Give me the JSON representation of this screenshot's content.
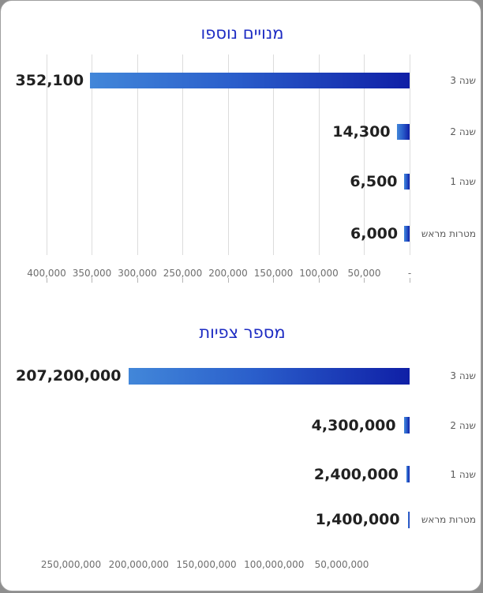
{
  "page": {
    "background_color": "#8e8e8e",
    "card_color": "#ffffff"
  },
  "colors": {
    "title_text": "#1e2cc3",
    "value_label_text": "#212121",
    "category_label_text": "#5a5a5a",
    "axis_label_text": "#6e6e6e",
    "gridline": "#dcdcdc",
    "tick_mark": "#b5b5b5",
    "bar_gradient_left": "#4287d9",
    "bar_gradient_right": "#0f1fa6"
  },
  "chart_data": [
    {
      "type": "bar",
      "orientation": "horizontal_rtl",
      "title": "מנויים נוספו",
      "categories": [
        "שנה 3",
        "שנה 2",
        "שנה 1",
        "מטרות מראש"
      ],
      "values": [
        352100,
        14300,
        6500,
        6000
      ],
      "value_labels": [
        "352,100",
        "14,300",
        "6,500",
        "6,000"
      ],
      "xlim": [
        0,
        400000
      ],
      "axis_tick_labels": [
        "400,000",
        "350,000",
        "300,000",
        "250,000",
        "200,000",
        "150,000",
        "100,000",
        "50,000",
        "-"
      ],
      "grid": true,
      "legend": "none"
    },
    {
      "type": "bar",
      "orientation": "horizontal_rtl",
      "title": "מספר צפיות",
      "categories": [
        "שנה 3",
        "שנה 2",
        "שנה 1",
        "מטרות מראש"
      ],
      "values": [
        207200000,
        4300000,
        2400000,
        1400000
      ],
      "value_labels": [
        "207,200,000",
        "4,300,000",
        "2,400,000",
        "1,400,000"
      ],
      "xlim": [
        0,
        250000000
      ],
      "axis_tick_labels": [
        "250,000,000",
        "200,000,000",
        "150,000,000",
        "100,000,000",
        "50,000,000"
      ],
      "grid": false,
      "legend": "none"
    }
  ]
}
